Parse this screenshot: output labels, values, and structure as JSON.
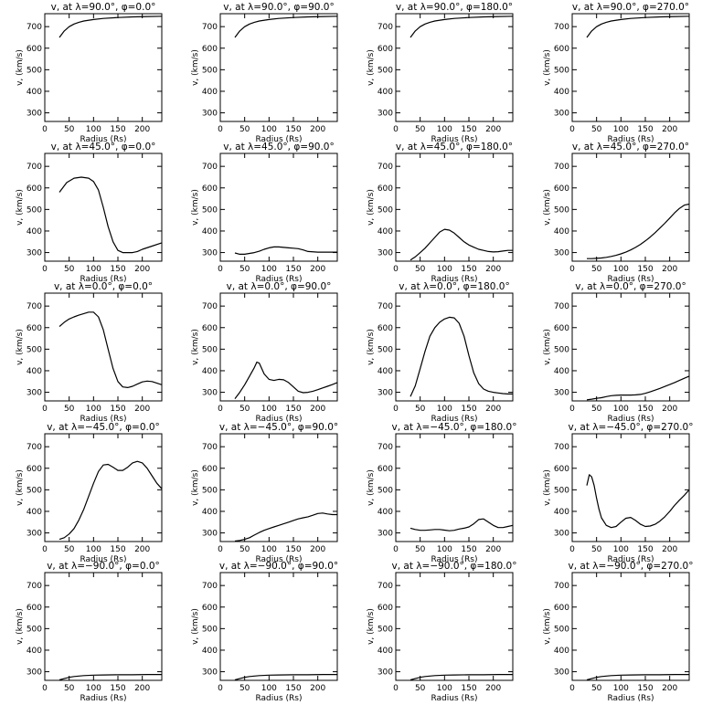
{
  "colors": {
    "background": "#ffffff",
    "line": "#000000"
  },
  "chart_data": [
    {
      "type": "line",
      "title": "v, at λ=90.0°, φ=0.0°",
      "xlabel": "Radius (Rs)",
      "ylabel": "v, (km/s)",
      "xlim": [
        0,
        240
      ],
      "ylim": [
        260,
        760
      ],
      "xticks": [
        0,
        50,
        100,
        150,
        200
      ],
      "yticks": [
        300,
        400,
        500,
        600,
        700
      ],
      "grid": false,
      "x": [
        30,
        40,
        50,
        60,
        70,
        80,
        100,
        120,
        150,
        180,
        210,
        240
      ],
      "y": [
        650,
        680,
        700,
        712,
        720,
        726,
        733,
        738,
        742,
        745,
        747,
        748
      ]
    },
    {
      "type": "line",
      "title": "v, at λ=90.0°, φ=90.0°",
      "xlabel": "Radius (Rs)",
      "ylabel": "v, (km/s)",
      "xlim": [
        0,
        240
      ],
      "ylim": [
        260,
        760
      ],
      "xticks": [
        0,
        50,
        100,
        150,
        200
      ],
      "yticks": [
        300,
        400,
        500,
        600,
        700
      ],
      "grid": false,
      "x": [
        30,
        40,
        50,
        60,
        70,
        80,
        100,
        120,
        150,
        180,
        210,
        240
      ],
      "y": [
        650,
        680,
        700,
        712,
        720,
        726,
        733,
        738,
        742,
        745,
        747,
        748
      ]
    },
    {
      "type": "line",
      "title": "v, at λ=90.0°, φ=180.0°",
      "xlabel": "Radius (Rs)",
      "ylabel": "v, (km/s)",
      "xlim": [
        0,
        240
      ],
      "ylim": [
        260,
        760
      ],
      "xticks": [
        0,
        50,
        100,
        150,
        200
      ],
      "yticks": [
        300,
        400,
        500,
        600,
        700
      ],
      "grid": false,
      "x": [
        30,
        40,
        50,
        60,
        70,
        80,
        100,
        120,
        150,
        180,
        210,
        240
      ],
      "y": [
        650,
        680,
        700,
        712,
        720,
        726,
        733,
        738,
        742,
        745,
        747,
        748
      ]
    },
    {
      "type": "line",
      "title": "v, at λ=90.0°, φ=270.0°",
      "xlabel": "Radius (Rs)",
      "ylabel": "v, (km/s)",
      "xlim": [
        0,
        240
      ],
      "ylim": [
        260,
        760
      ],
      "xticks": [
        0,
        50,
        100,
        150,
        200
      ],
      "yticks": [
        300,
        400,
        500,
        600,
        700
      ],
      "grid": false,
      "x": [
        30,
        40,
        50,
        60,
        70,
        80,
        100,
        120,
        150,
        180,
        210,
        240
      ],
      "y": [
        650,
        680,
        700,
        712,
        720,
        726,
        733,
        738,
        742,
        745,
        747,
        748
      ]
    },
    {
      "type": "line",
      "title": "v, at λ=45.0°, φ=0.0°",
      "xlabel": "Radius (Rs)",
      "ylabel": "v, (km/s)",
      "xlim": [
        0,
        240
      ],
      "ylim": [
        260,
        760
      ],
      "xticks": [
        0,
        50,
        100,
        150,
        200
      ],
      "yticks": [
        300,
        400,
        500,
        600,
        700
      ],
      "grid": false,
      "x": [
        30,
        45,
        60,
        75,
        90,
        100,
        110,
        120,
        130,
        140,
        150,
        160,
        170,
        180,
        190,
        200,
        220,
        240
      ],
      "y": [
        580,
        625,
        645,
        650,
        645,
        630,
        590,
        510,
        420,
        350,
        310,
        300,
        300,
        300,
        305,
        315,
        330,
        345
      ]
    },
    {
      "type": "line",
      "title": "v, at λ=45.0°, φ=90.0°",
      "xlabel": "Radius (Rs)",
      "ylabel": "v, (km/s)",
      "xlim": [
        0,
        240
      ],
      "ylim": [
        260,
        760
      ],
      "xticks": [
        0,
        50,
        100,
        150,
        200
      ],
      "yticks": [
        300,
        400,
        500,
        600,
        700
      ],
      "grid": false,
      "x": [
        30,
        40,
        50,
        60,
        70,
        80,
        90,
        100,
        110,
        120,
        130,
        140,
        150,
        160,
        170,
        180,
        200,
        220,
        240
      ],
      "y": [
        298,
        292,
        292,
        296,
        300,
        306,
        315,
        322,
        326,
        326,
        324,
        322,
        320,
        318,
        312,
        305,
        302,
        302,
        302
      ]
    },
    {
      "type": "line",
      "title": "v, at λ=45.0°, φ=180.0°",
      "xlabel": "Radius (Rs)",
      "ylabel": "v, (km/s)",
      "xlim": [
        0,
        240
      ],
      "ylim": [
        260,
        760
      ],
      "xticks": [
        0,
        50,
        100,
        150,
        200
      ],
      "yticks": [
        300,
        400,
        500,
        600,
        700
      ],
      "grid": false,
      "x": [
        30,
        40,
        50,
        60,
        70,
        80,
        90,
        100,
        110,
        120,
        130,
        140,
        150,
        160,
        170,
        180,
        190,
        200,
        210,
        220,
        230,
        240
      ],
      "y": [
        265,
        280,
        300,
        320,
        345,
        370,
        395,
        408,
        404,
        390,
        370,
        350,
        335,
        325,
        315,
        310,
        305,
        303,
        304,
        307,
        310,
        310
      ]
    },
    {
      "type": "line",
      "title": "v, at λ=45.0°, φ=270.0°",
      "xlabel": "Radius (Rs)",
      "ylabel": "v, (km/s)",
      "xlim": [
        0,
        240
      ],
      "ylim": [
        260,
        760
      ],
      "xticks": [
        0,
        50,
        100,
        150,
        200
      ],
      "yticks": [
        300,
        400,
        500,
        600,
        700
      ],
      "grid": false,
      "x": [
        30,
        40,
        50,
        60,
        70,
        80,
        90,
        100,
        110,
        120,
        130,
        140,
        150,
        160,
        170,
        180,
        190,
        200,
        210,
        220,
        230,
        240
      ],
      "y": [
        272,
        272,
        273,
        275,
        278,
        282,
        287,
        294,
        302,
        312,
        324,
        338,
        354,
        372,
        392,
        414,
        436,
        460,
        484,
        505,
        520,
        525
      ]
    },
    {
      "type": "line",
      "title": "v, at λ=0.0°, φ=0.0°",
      "xlabel": "Radius (Rs)",
      "ylabel": "v, (km/s)",
      "xlim": [
        0,
        240
      ],
      "ylim": [
        260,
        760
      ],
      "xticks": [
        0,
        50,
        100,
        150,
        200
      ],
      "yticks": [
        300,
        400,
        500,
        600,
        700
      ],
      "grid": false,
      "x": [
        30,
        40,
        50,
        60,
        70,
        80,
        90,
        100,
        110,
        120,
        130,
        140,
        150,
        160,
        170,
        180,
        190,
        200,
        210,
        220,
        230,
        240
      ],
      "y": [
        605,
        625,
        640,
        650,
        658,
        665,
        672,
        672,
        650,
        590,
        500,
        410,
        350,
        325,
        322,
        328,
        338,
        348,
        352,
        350,
        342,
        335
      ]
    },
    {
      "type": "line",
      "title": "v, at λ=0.0°, φ=90.0°",
      "xlabel": "Radius (Rs)",
      "ylabel": "v, (km/s)",
      "xlim": [
        0,
        240
      ],
      "ylim": [
        260,
        760
      ],
      "xticks": [
        0,
        50,
        100,
        150,
        200
      ],
      "yticks": [
        300,
        400,
        500,
        600,
        700
      ],
      "grid": false,
      "x": [
        30,
        40,
        50,
        60,
        70,
        75,
        80,
        90,
        100,
        110,
        120,
        130,
        140,
        150,
        160,
        170,
        180,
        190,
        200,
        210,
        220,
        230,
        240
      ],
      "y": [
        270,
        300,
        335,
        375,
        415,
        440,
        435,
        385,
        360,
        355,
        360,
        358,
        345,
        325,
        305,
        298,
        300,
        305,
        312,
        320,
        328,
        336,
        345
      ]
    },
    {
      "type": "line",
      "title": "v, at λ=0.0°, φ=180.0°",
      "xlabel": "Radius (Rs)",
      "ylabel": "v, (km/s)",
      "xlim": [
        0,
        240
      ],
      "ylim": [
        260,
        760
      ],
      "xticks": [
        0,
        50,
        100,
        150,
        200
      ],
      "yticks": [
        300,
        400,
        500,
        600,
        700
      ],
      "grid": false,
      "x": [
        30,
        40,
        50,
        60,
        70,
        80,
        90,
        100,
        110,
        120,
        130,
        140,
        150,
        160,
        170,
        180,
        190,
        200,
        210,
        220,
        230,
        240
      ],
      "y": [
        280,
        330,
        410,
        490,
        560,
        600,
        625,
        640,
        648,
        645,
        620,
        560,
        470,
        390,
        340,
        315,
        305,
        300,
        297,
        294,
        292,
        292
      ]
    },
    {
      "type": "line",
      "title": "v, at λ=0.0°, φ=270.0°",
      "xlabel": "Radius (Rs)",
      "ylabel": "v, (km/s)",
      "xlim": [
        0,
        240
      ],
      "ylim": [
        260,
        760
      ],
      "xticks": [
        0,
        50,
        100,
        150,
        200
      ],
      "yticks": [
        300,
        400,
        500,
        600,
        700
      ],
      "grid": false,
      "x": [
        30,
        40,
        50,
        60,
        70,
        80,
        90,
        100,
        110,
        120,
        130,
        140,
        150,
        160,
        170,
        180,
        190,
        200,
        210,
        220,
        230,
        240
      ],
      "y": [
        265,
        268,
        272,
        275,
        280,
        284,
        286,
        287,
        287,
        287,
        288,
        290,
        295,
        302,
        310,
        318,
        327,
        336,
        345,
        355,
        365,
        375
      ]
    },
    {
      "type": "line",
      "title": "v, at λ=−45.0°, φ=0.0°",
      "xlabel": "Radius (Rs)",
      "ylabel": "v, (km/s)",
      "xlim": [
        0,
        240
      ],
      "ylim": [
        260,
        760
      ],
      "xticks": [
        0,
        50,
        100,
        150,
        200
      ],
      "yticks": [
        300,
        400,
        500,
        600,
        700
      ],
      "grid": false,
      "x": [
        30,
        40,
        50,
        60,
        70,
        80,
        90,
        100,
        110,
        120,
        130,
        140,
        150,
        160,
        170,
        180,
        190,
        200,
        210,
        220,
        230,
        240
      ],
      "y": [
        270,
        278,
        295,
        320,
        360,
        410,
        470,
        530,
        585,
        615,
        618,
        605,
        590,
        590,
        605,
        625,
        632,
        625,
        600,
        565,
        530,
        505
      ]
    },
    {
      "type": "line",
      "title": "v, at λ=−45.0°, φ=90.0°",
      "xlabel": "Radius (Rs)",
      "ylabel": "v, (km/s)",
      "xlim": [
        0,
        240
      ],
      "ylim": [
        260,
        760
      ],
      "xticks": [
        0,
        50,
        100,
        150,
        200
      ],
      "yticks": [
        300,
        400,
        500,
        600,
        700
      ],
      "grid": false,
      "x": [
        30,
        40,
        50,
        60,
        70,
        80,
        90,
        100,
        110,
        120,
        130,
        140,
        150,
        160,
        170,
        180,
        190,
        200,
        210,
        220,
        230,
        240
      ],
      "y": [
        262,
        265,
        270,
        278,
        290,
        302,
        312,
        320,
        328,
        335,
        342,
        350,
        358,
        365,
        370,
        375,
        382,
        390,
        392,
        388,
        385,
        385
      ]
    },
    {
      "type": "line",
      "title": "v, at λ=−45.0°, φ=180.0°",
      "xlabel": "Radius (Rs)",
      "ylabel": "v, (km/s)",
      "xlim": [
        0,
        240
      ],
      "ylim": [
        260,
        760
      ],
      "xticks": [
        0,
        50,
        100,
        150,
        200
      ],
      "yticks": [
        300,
        400,
        500,
        600,
        700
      ],
      "grid": false,
      "x": [
        30,
        40,
        50,
        60,
        70,
        80,
        90,
        100,
        110,
        120,
        130,
        140,
        150,
        160,
        170,
        180,
        190,
        200,
        210,
        220,
        230,
        240
      ],
      "y": [
        322,
        316,
        312,
        312,
        314,
        316,
        316,
        313,
        310,
        312,
        318,
        322,
        328,
        342,
        362,
        365,
        350,
        335,
        325,
        325,
        330,
        335
      ]
    },
    {
      "type": "line",
      "title": "v, at λ=−45.0°, φ=270.0°",
      "xlabel": "Radius (Rs)",
      "ylabel": "v, (km/s)",
      "xlim": [
        0,
        240
      ],
      "ylim": [
        260,
        760
      ],
      "xticks": [
        0,
        50,
        100,
        150,
        200
      ],
      "yticks": [
        300,
        400,
        500,
        600,
        700
      ],
      "grid": false,
      "x": [
        30,
        35,
        40,
        45,
        50,
        55,
        60,
        70,
        80,
        90,
        100,
        110,
        120,
        130,
        140,
        150,
        160,
        170,
        180,
        190,
        200,
        210,
        220,
        230,
        240
      ],
      "y": [
        520,
        570,
        560,
        520,
        460,
        410,
        370,
        335,
        325,
        330,
        350,
        368,
        372,
        358,
        340,
        330,
        332,
        340,
        355,
        375,
        400,
        428,
        452,
        475,
        500
      ]
    },
    {
      "type": "line",
      "title": "v, at λ=−90.0°, φ=0.0°",
      "xlabel": "Radius (Rs)",
      "ylabel": "v, (km/s)",
      "xlim": [
        0,
        240
      ],
      "ylim": [
        260,
        760
      ],
      "xticks": [
        0,
        50,
        100,
        150,
        200
      ],
      "yticks": [
        300,
        400,
        500,
        600,
        700
      ],
      "grid": false,
      "x": [
        30,
        40,
        50,
        60,
        70,
        80,
        100,
        120,
        150,
        180,
        210,
        240
      ],
      "y": [
        262,
        268,
        274,
        278,
        280,
        282,
        284,
        285,
        286,
        286,
        287,
        287
      ]
    },
    {
      "type": "line",
      "title": "v, at λ=−90.0°, φ=90.0°",
      "xlabel": "Radius (Rs)",
      "ylabel": "v, (km/s)",
      "xlim": [
        0,
        240
      ],
      "ylim": [
        260,
        760
      ],
      "xticks": [
        0,
        50,
        100,
        150,
        200
      ],
      "yticks": [
        300,
        400,
        500,
        600,
        700
      ],
      "grid": false,
      "x": [
        30,
        40,
        50,
        60,
        70,
        80,
        100,
        120,
        150,
        180,
        210,
        240
      ],
      "y": [
        262,
        268,
        274,
        278,
        280,
        282,
        284,
        285,
        286,
        286,
        287,
        287
      ]
    },
    {
      "type": "line",
      "title": "v, at λ=−90.0°, φ=180.0°",
      "xlabel": "Radius (Rs)",
      "ylabel": "v, (km/s)",
      "xlim": [
        0,
        240
      ],
      "ylim": [
        260,
        760
      ],
      "xticks": [
        0,
        50,
        100,
        150,
        200
      ],
      "yticks": [
        300,
        400,
        500,
        600,
        700
      ],
      "grid": false,
      "x": [
        30,
        40,
        50,
        60,
        70,
        80,
        100,
        120,
        150,
        180,
        210,
        240
      ],
      "y": [
        262,
        268,
        274,
        278,
        280,
        282,
        284,
        285,
        286,
        286,
        287,
        287
      ]
    },
    {
      "type": "line",
      "title": "v, at λ=−90.0°, φ=270.0°",
      "xlabel": "Radius (Rs)",
      "ylabel": "v, (km/s)",
      "xlim": [
        0,
        240
      ],
      "ylim": [
        260,
        760
      ],
      "xticks": [
        0,
        50,
        100,
        150,
        200
      ],
      "yticks": [
        300,
        400,
        500,
        600,
        700
      ],
      "grid": false,
      "x": [
        30,
        40,
        50,
        60,
        70,
        80,
        100,
        120,
        150,
        180,
        210,
        240
      ],
      "y": [
        262,
        268,
        274,
        278,
        280,
        282,
        284,
        285,
        286,
        286,
        287,
        287
      ]
    }
  ]
}
